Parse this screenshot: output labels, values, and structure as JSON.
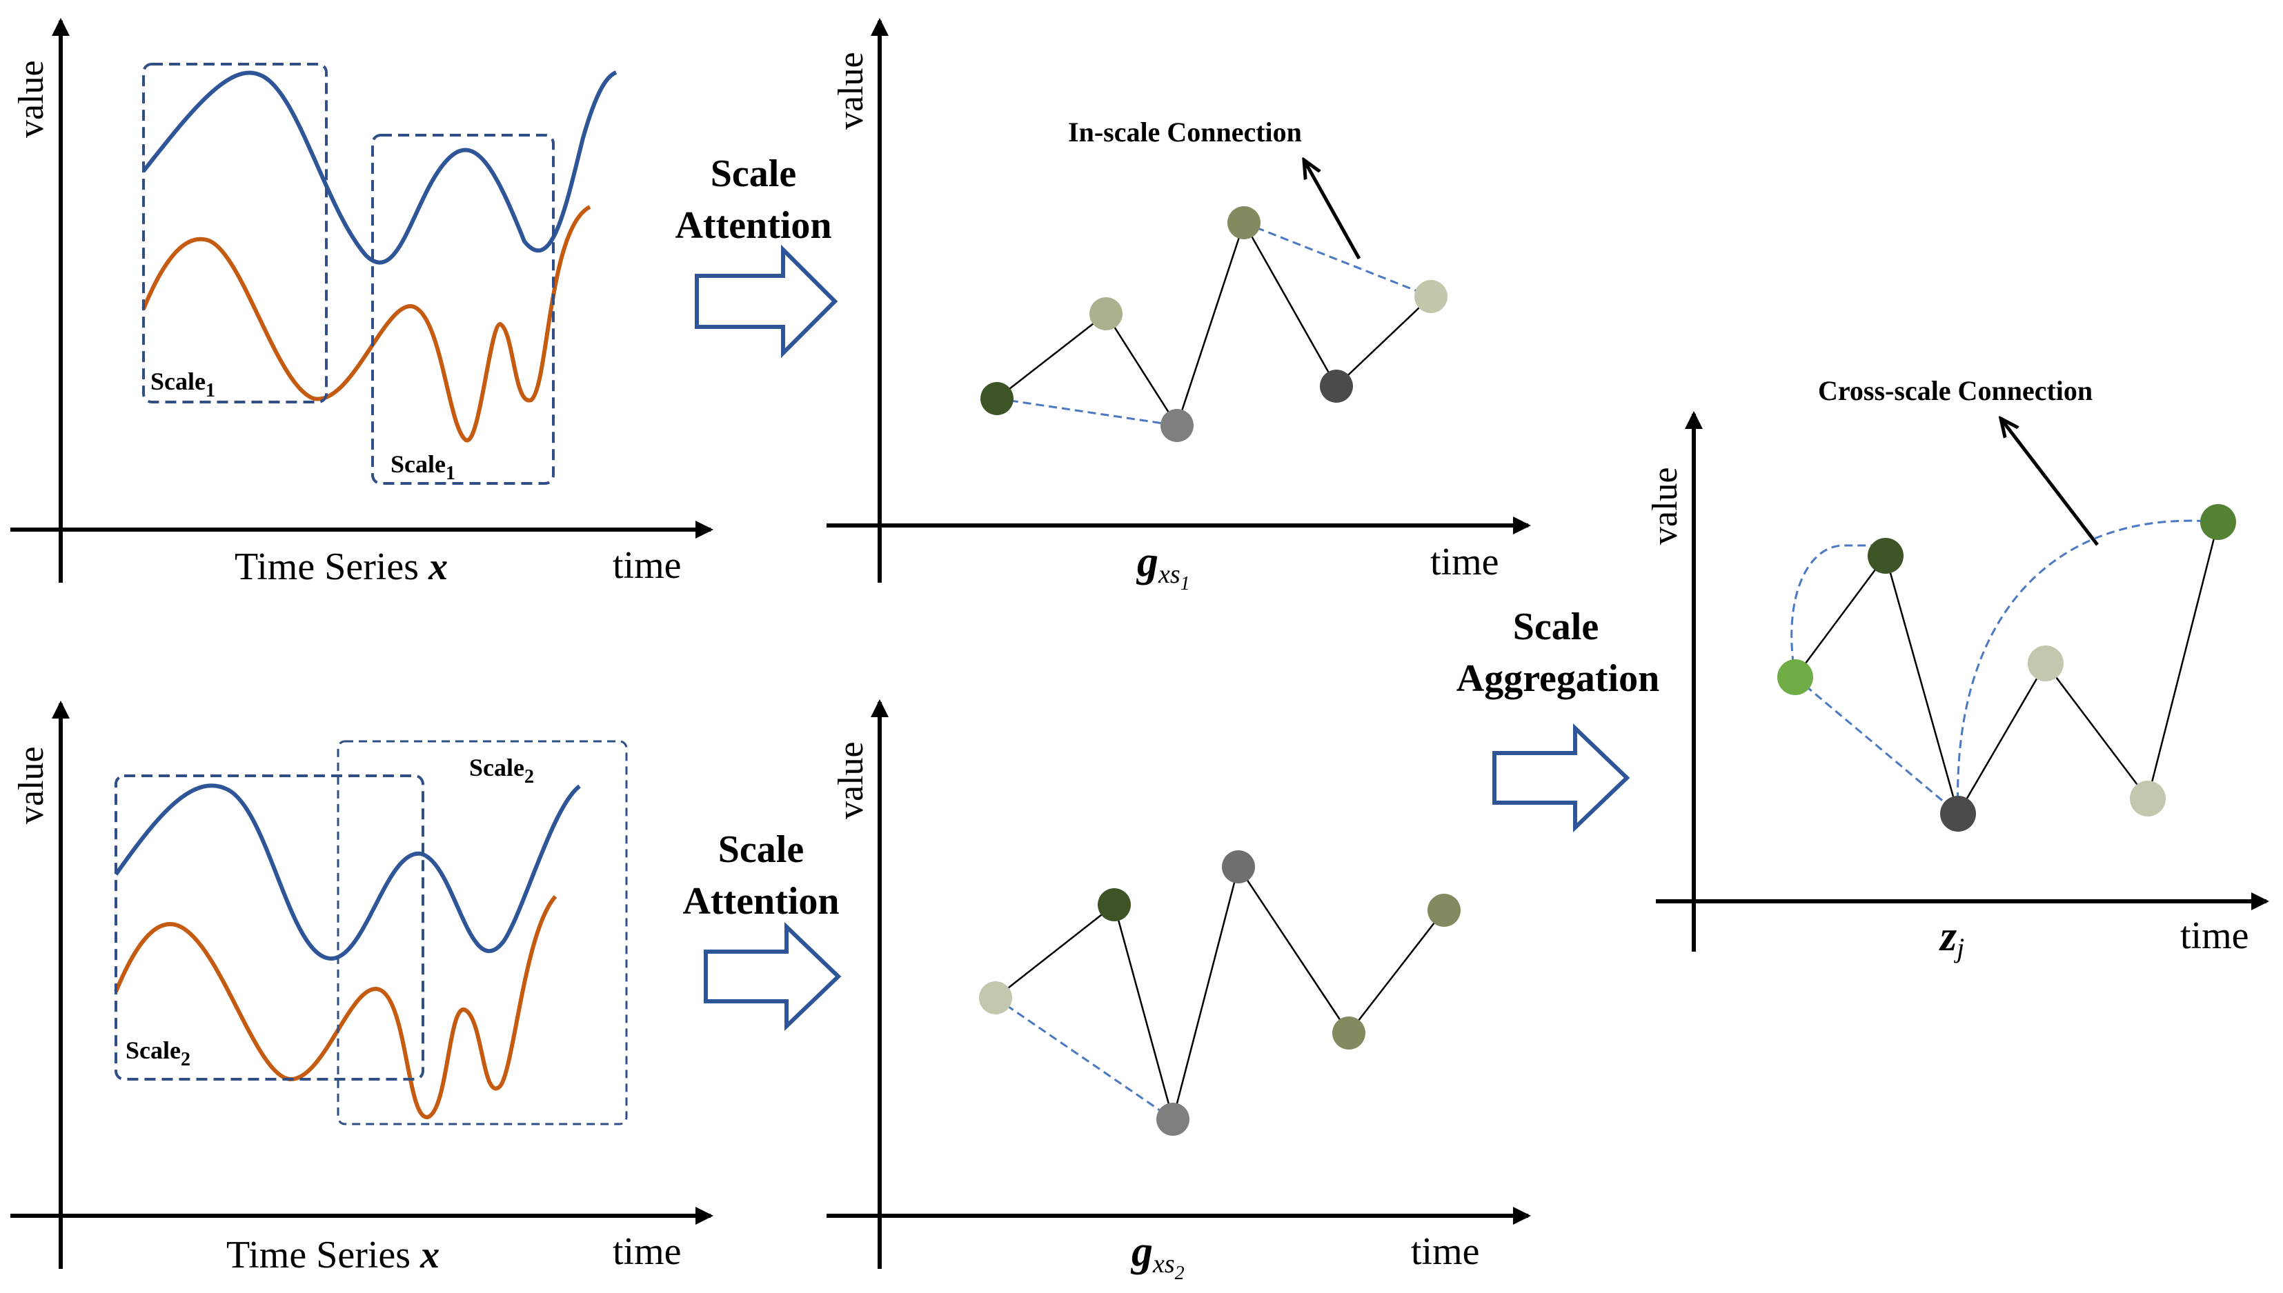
{
  "colors": {
    "blue_curve": "#2e5597",
    "orange_curve": "#c55a11",
    "box_dash": "#2f4f86",
    "link_dash": "#4a78c2",
    "arrow_fill": "#ffffff",
    "arrow_stroke": "#2e5597",
    "axis": "#000000"
  },
  "axes": {
    "y_label": "value",
    "x_label": "time"
  },
  "panels": {
    "ts1": {
      "caption": "Time Series ",
      "caption_var": "x",
      "scale_label_a": "Scale",
      "scale_label_a_sub": "1",
      "scale_label_b": "Scale",
      "scale_label_b_sub": "1"
    },
    "ts2": {
      "caption": "Time Series ",
      "caption_var": "x",
      "scale_label_a": "Scale",
      "scale_label_a_sub": "2",
      "scale_label_b": "Scale",
      "scale_label_b_sub": "2"
    },
    "g1": {
      "caption_main": "g",
      "caption_sub": "xs",
      "caption_subsub": "1",
      "annotation": "In-scale Connection"
    },
    "g2": {
      "caption_main": "g",
      "caption_sub": "xs",
      "caption_subsub": "2"
    },
    "z": {
      "caption_main": "z",
      "caption_sub": "j",
      "annotation": "Cross-scale Connection"
    }
  },
  "arrows": {
    "attention_top": {
      "line1": "Scale",
      "line2": "Attention"
    },
    "attention_bottom": {
      "line1": "Scale",
      "line2": "Attention"
    },
    "aggregation": {
      "line1": "Scale",
      "line2": "Aggregation"
    }
  },
  "graphs": {
    "g1": {
      "node_colors": [
        "#3d5426",
        "#a9b18f",
        "#7f7f7f",
        "#848a60",
        "#4b4b4b",
        "#c2c6ab"
      ],
      "edges": [
        [
          0,
          1
        ],
        [
          1,
          2
        ],
        [
          2,
          3
        ],
        [
          3,
          4
        ],
        [
          4,
          5
        ]
      ],
      "dashed": [
        [
          0,
          2
        ],
        [
          3,
          5
        ]
      ]
    },
    "g2": {
      "node_colors": [
        "#c3c7ad",
        "#3d5426",
        "#7f7f7f",
        "#6f6f6f",
        "#848a60",
        "#848a60"
      ],
      "edges": [
        [
          0,
          1
        ],
        [
          1,
          2
        ],
        [
          2,
          3
        ],
        [
          3,
          4
        ],
        [
          4,
          5
        ]
      ],
      "dashed": [
        [
          0,
          2
        ]
      ]
    },
    "z": {
      "node_colors": [
        "#70ad47",
        "#3d5426",
        "#4b4b4b",
        "#c3c7ad",
        "#c3c7ad",
        "#548235"
      ],
      "edges": [
        [
          0,
          1
        ],
        [
          1,
          2
        ],
        [
          2,
          3
        ],
        [
          3,
          4
        ],
        [
          4,
          5
        ]
      ],
      "dashed_curves": [
        "0-1",
        "2-5"
      ],
      "dashed": [
        [
          0,
          2
        ]
      ]
    }
  }
}
